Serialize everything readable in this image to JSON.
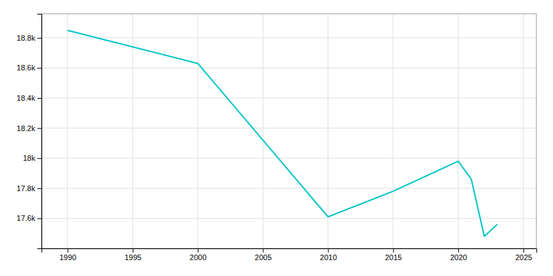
{
  "chart_data": {
    "type": "line",
    "x": [
      1990,
      2000,
      2010,
      2015,
      2020,
      2021,
      2022,
      2023
    ],
    "values": [
      18850,
      18630,
      17610,
      17780,
      17980,
      17860,
      17480,
      17560
    ],
    "color": "#00C5C8",
    "xlim": [
      1988,
      2026
    ],
    "ylim": [
      17400,
      18960
    ],
    "xticks": [
      1990,
      1995,
      2000,
      2005,
      2010,
      2015,
      2020,
      2025
    ],
    "yticks": [
      {
        "value": 17600,
        "label": "17.6k"
      },
      {
        "value": 17800,
        "label": "17.8k"
      },
      {
        "value": 18000,
        "label": "18k"
      },
      {
        "value": 18200,
        "label": "18.2k"
      },
      {
        "value": 18400,
        "label": "18.4k"
      },
      {
        "value": 18600,
        "label": "18.6k"
      },
      {
        "value": 18800,
        "label": "18.8k"
      }
    ],
    "grid": true
  }
}
